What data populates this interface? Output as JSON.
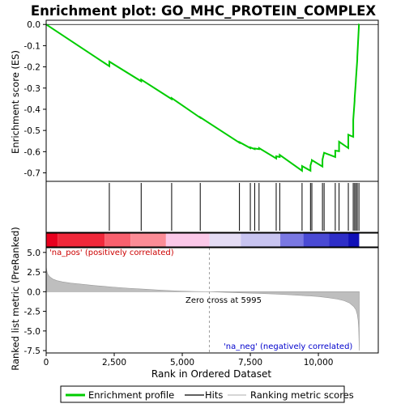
{
  "chart_data": {
    "type": "line",
    "title": "Enrichment plot: GO_MHC_PROTEIN_COMPLEX",
    "xlabel": "Rank in Ordered Dataset",
    "es_panel": {
      "ylabel": "Enrichment score (ES)",
      "ylim": [
        -0.74,
        0.02
      ],
      "yticks": [
        "0.0",
        "-0.1",
        "-0.2",
        "-0.3",
        "-0.4",
        "-0.5",
        "-0.6",
        "-0.7"
      ],
      "ytick_values": [
        0.0,
        -0.1,
        -0.2,
        -0.3,
        -0.4,
        -0.5,
        -0.6,
        -0.7
      ],
      "series_color": "#00cc00",
      "profile": {
        "x": [
          0,
          2320,
          2320,
          3490,
          3490,
          4610,
          4610,
          5660,
          5660,
          7100,
          7100,
          7500,
          7500,
          7660,
          7660,
          7820,
          7820,
          8450,
          8450,
          8580,
          8580,
          9400,
          9400,
          9710,
          9710,
          9760,
          9760,
          10150,
          10150,
          10210,
          10210,
          10620,
          10620,
          10760,
          10760,
          11100,
          11100,
          11280,
          11280,
          11330,
          11330,
          11380,
          11380,
          11430,
          11430,
          11490,
          11490,
          11500
        ],
        "y": [
          0.0,
          -0.197,
          -0.175,
          -0.268,
          -0.26,
          -0.352,
          -0.347,
          -0.44,
          -0.438,
          -0.558,
          -0.555,
          -0.583,
          -0.58,
          -0.588,
          -0.585,
          -0.588,
          -0.583,
          -0.632,
          -0.622,
          -0.625,
          -0.615,
          -0.69,
          -0.668,
          -0.69,
          -0.665,
          -0.643,
          -0.64,
          -0.67,
          -0.638,
          -0.605,
          -0.605,
          -0.625,
          -0.595,
          -0.598,
          -0.553,
          -0.583,
          -0.52,
          -0.53,
          -0.45,
          -0.36,
          -0.35,
          -0.265,
          -0.26,
          -0.165,
          -0.155,
          -0.005,
          0.0,
          0.0
        ]
      }
    },
    "hits_panel": {
      "hit_positions": [
        2320,
        3490,
        4610,
        5660,
        7100,
        7500,
        7660,
        7820,
        8450,
        8580,
        9400,
        9710,
        9760,
        10150,
        10210,
        10620,
        10760,
        11100,
        11280,
        11330,
        11380,
        11430,
        11490
      ]
    },
    "heatmap_bar": {
      "segments": [
        {
          "from": 0,
          "to": 420,
          "color": "#e8001e"
        },
        {
          "from": 420,
          "to": 2150,
          "color": "#f0283a"
        },
        {
          "from": 2150,
          "to": 3100,
          "color": "#f8606e"
        },
        {
          "from": 3100,
          "to": 4400,
          "color": "#fb8c96"
        },
        {
          "from": 4400,
          "to": 6000,
          "color": "#fbc8e8"
        },
        {
          "from": 6000,
          "to": 7150,
          "color": "#e4dcf4"
        },
        {
          "from": 7150,
          "to": 8600,
          "color": "#c8c4f0"
        },
        {
          "from": 8600,
          "to": 9450,
          "color": "#7a78e2"
        },
        {
          "from": 9450,
          "to": 10400,
          "color": "#4a4ad4"
        },
        {
          "from": 10400,
          "to": 11100,
          "color": "#2e2ec8"
        },
        {
          "from": 11100,
          "to": 11500,
          "color": "#1010b8"
        }
      ]
    },
    "metric_panel": {
      "ylabel": "Ranked list metric (PreRanked)",
      "ylim": [
        -7.8,
        5.6
      ],
      "yticks": [
        "5.0",
        "2.5",
        "0.0",
        "-2.5",
        "-5.0",
        "-7.5"
      ],
      "ytick_values": [
        5.0,
        2.5,
        0.0,
        -2.5,
        -5.0,
        -7.5
      ],
      "fill_color": "#bebebe",
      "metric": {
        "x": [
          0,
          15,
          40,
          80,
          150,
          250,
          400,
          600,
          900,
          1300,
          1800,
          2400,
          3000,
          3600,
          4200,
          4800,
          5400,
          5995,
          6600,
          7200,
          7800,
          8400,
          9000,
          9600,
          10000,
          10400,
          10700,
          10950,
          11150,
          11300,
          11380,
          11430,
          11460,
          11480,
          11495,
          11500
        ],
        "y": [
          3.3,
          2.8,
          2.4,
          2.1,
          1.85,
          1.6,
          1.4,
          1.25,
          1.1,
          0.95,
          0.78,
          0.6,
          0.45,
          0.32,
          0.2,
          0.1,
          0.03,
          0.0,
          -0.08,
          -0.15,
          -0.22,
          -0.3,
          -0.4,
          -0.52,
          -0.62,
          -0.78,
          -0.95,
          -1.15,
          -1.45,
          -1.9,
          -2.3,
          -2.9,
          -3.6,
          -4.6,
          -6.5,
          -7.5
        ]
      },
      "zero_cross_label": "Zero cross at 5995",
      "zero_cross_x": 5995,
      "pos_label": "'na_pos' (positively correlated)",
      "neg_label": "'na_neg' (negatively correlated)",
      "pos_color": "#cc0000",
      "neg_color": "#0000cc"
    },
    "xlim": [
      0,
      12200
    ],
    "xticks": [
      "0",
      "2,500",
      "5,000",
      "7,500",
      "10,000"
    ],
    "xtick_values": [
      0,
      2500,
      5000,
      7500,
      10000
    ],
    "legend": {
      "placement": "bottom",
      "entries": [
        {
          "label": "Enrichment profile",
          "color": "#00cc00"
        },
        {
          "label": "Hits",
          "color": "#000000"
        },
        {
          "label": "Ranking metric scores",
          "color": "#bebebe"
        }
      ]
    }
  }
}
